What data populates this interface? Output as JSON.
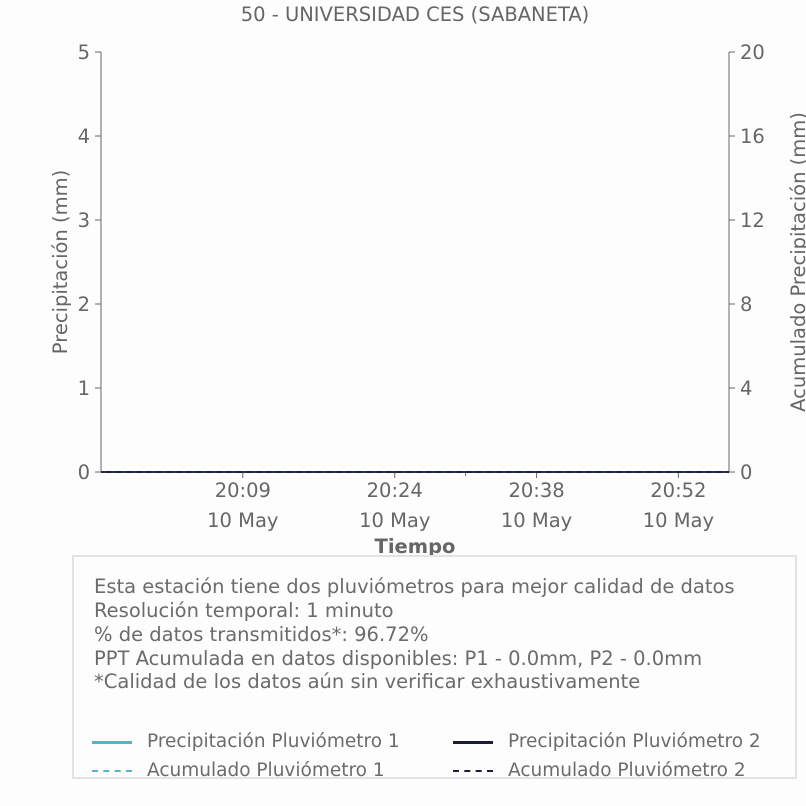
{
  "chart_data": {
    "type": "line",
    "title": "50 - UNIVERSIDAD CES (SABANETA)",
    "xlabel": "Tiempo",
    "ylabel": "Precipitación (mm)",
    "y2label": "Acumulado Precipitación (mm)",
    "ylim": [
      0,
      5
    ],
    "y2lim": [
      0,
      20
    ],
    "y_ticks": [
      0,
      1,
      2,
      3,
      4,
      5
    ],
    "y2_ticks": [
      0,
      4,
      8,
      12,
      16,
      20
    ],
    "x_ticks": [
      {
        "time": "20:09",
        "date": "10 May",
        "minute": 9
      },
      {
        "time": "20:24",
        "date": "10 May",
        "minute": 24
      },
      {
        "time": "20:38",
        "date": "10 May",
        "minute": 38
      },
      {
        "time": "20:52",
        "date": "10 May",
        "minute": 52
      }
    ],
    "x_range_minutes": [
      -5,
      57
    ],
    "grid": false,
    "series": [
      {
        "name": "Precipitación Pluviómetro 1",
        "color": "#5ab4c5",
        "style": "solid",
        "axis": "left",
        "x": [
          -5,
          57
        ],
        "values": [
          0,
          0
        ]
      },
      {
        "name": "Precipitación Pluviómetro 2",
        "color": "#1c1c3a",
        "style": "solid",
        "axis": "left",
        "x": [
          -5,
          57
        ],
        "values": [
          0,
          0
        ]
      },
      {
        "name": "Acumulado Pluviómetro 1",
        "color": "#5ab4c5",
        "style": "dashed",
        "axis": "right",
        "x": [
          -5,
          57
        ],
        "values": [
          0,
          0
        ]
      },
      {
        "name": "Acumulado Pluviómetro 2",
        "color": "#1c1c3a",
        "style": "dashed",
        "axis": "right",
        "x": [
          -5,
          57
        ],
        "values": [
          0,
          0
        ]
      }
    ]
  },
  "info": {
    "lines": [
      "Esta estación tiene dos pluviómetros para mejor calidad de datos",
      "Resolución temporal: 1 minuto",
      "% de datos transmitidos*: 96.72%",
      "PPT Acumulada en datos disponibles: P1 - 0.0mm, P2 - 0.0mm",
      "*Calidad de los datos aún sin verificar exhaustivamente"
    ]
  },
  "colors": {
    "axis": "#666666",
    "series1": "#5ab4c5",
    "series2": "#1c1c3a",
    "box_border": "#e3e3e3"
  }
}
